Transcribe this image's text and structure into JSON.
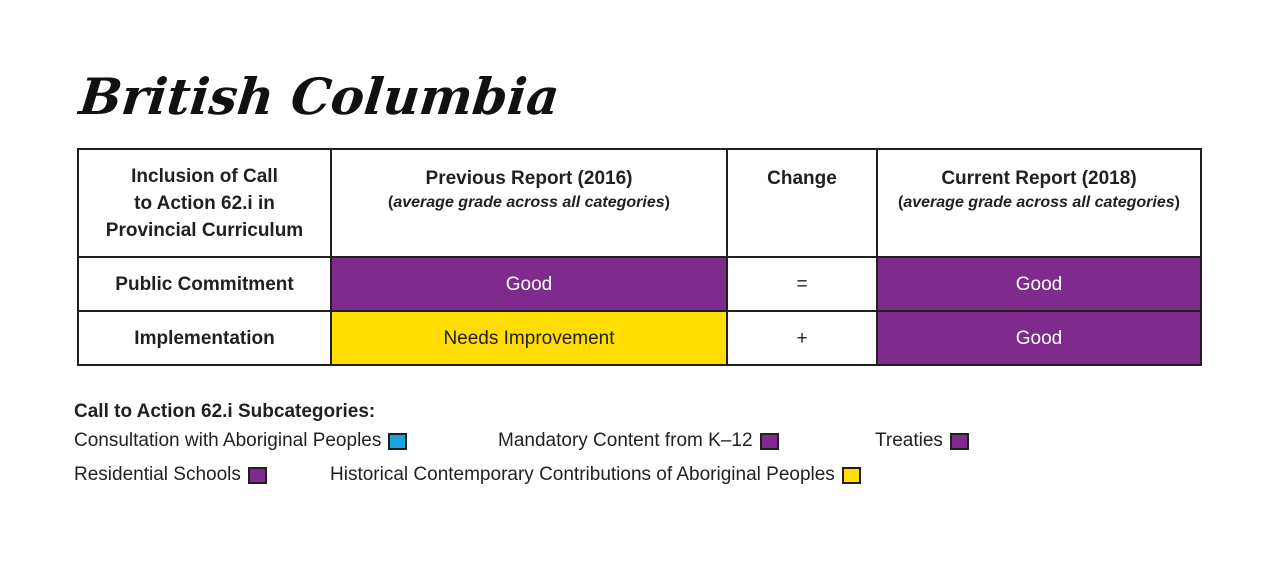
{
  "title": "British Columbia",
  "colors": {
    "good": "#7f2b8e",
    "needs_improvement": "#ffdd00",
    "consultation": "#1aa3dc",
    "border": "#231f20"
  },
  "table": {
    "header": {
      "inclusion_line1": "Inclusion of Call",
      "inclusion_line2": "to Action 62.i in",
      "inclusion_line3": "Provincial Curriculum",
      "previous_title": "Previous Report (2016)",
      "previous_note_open": "(",
      "previous_note": "average grade across all categories",
      "previous_note_close": ")",
      "change_title": "Change",
      "current_title": "Current Report (2018)",
      "current_note_open": "(",
      "current_note": "average grade across all categories",
      "current_note_close": ")"
    },
    "rows": [
      {
        "label": "Public Commitment",
        "previous": "Good",
        "previous_color": "#7f2b8e",
        "change": "=",
        "current": "Good",
        "current_color": "#7f2b8e"
      },
      {
        "label": "Implementation",
        "previous": "Needs Improvement",
        "previous_color": "#ffdd00",
        "change": "+",
        "current": "Good",
        "current_color": "#7f2b8e"
      }
    ]
  },
  "legend": {
    "title": "Call to Action 62.i Subcategories:",
    "items": [
      {
        "label": "Consultation with Aboriginal Peoples",
        "color": "#1aa3dc"
      },
      {
        "label": "Mandatory Content from K–12",
        "color": "#7f2b8e"
      },
      {
        "label": "Treaties",
        "color": "#7f2b8e"
      },
      {
        "label": "Residential Schools",
        "color": "#7f2b8e"
      },
      {
        "label": "Historical Contemporary Contributions of Aboriginal Peoples",
        "color": "#ffdd00"
      }
    ]
  }
}
